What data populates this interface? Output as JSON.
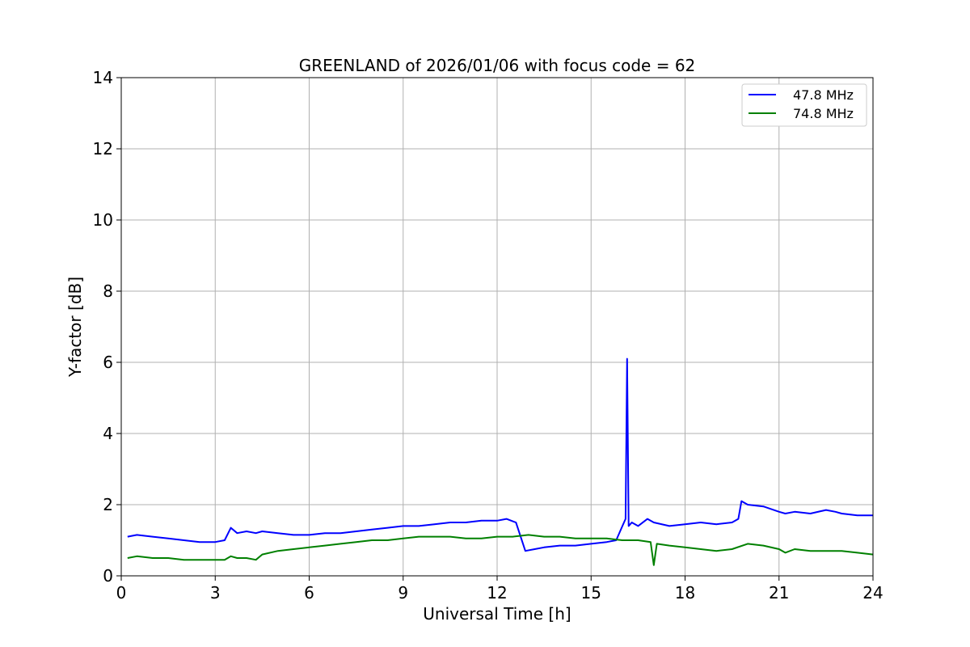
{
  "chart_data": {
    "type": "line",
    "title": "GREENLAND of 2026/01/06 with focus code = 62",
    "xlabel": "Universal Time [h]",
    "ylabel": "Y-factor [dB]",
    "xlim": [
      0,
      24
    ],
    "ylim": [
      0,
      14
    ],
    "xticks": [
      "0",
      "3",
      "6",
      "9",
      "12",
      "15",
      "18",
      "21",
      "24"
    ],
    "yticks": [
      "0",
      "2",
      "4",
      "6",
      "8",
      "10",
      "12",
      "14"
    ],
    "grid": true,
    "legend_position": "top-right",
    "series": [
      {
        "name": "47.8 MHz",
        "color": "#0000ff",
        "x": [
          0.2,
          0.5,
          1.0,
          1.5,
          2.0,
          2.5,
          3.0,
          3.3,
          3.5,
          3.7,
          4.0,
          4.3,
          4.5,
          5.0,
          5.5,
          6.0,
          6.5,
          7.0,
          7.5,
          8.0,
          8.5,
          9.0,
          9.5,
          10.0,
          10.5,
          11.0,
          11.5,
          12.0,
          12.3,
          12.6,
          12.9,
          13.2,
          13.5,
          14.0,
          14.5,
          15.0,
          15.5,
          15.8,
          16.0,
          16.1,
          16.15,
          16.2,
          16.3,
          16.5,
          16.8,
          17.0,
          17.5,
          18.0,
          18.5,
          19.0,
          19.5,
          19.7,
          19.8,
          20.0,
          20.5,
          21.0,
          21.2,
          21.5,
          22.0,
          22.5,
          22.8,
          23.0,
          23.5,
          24.0
        ],
        "y": [
          1.1,
          1.15,
          1.1,
          1.05,
          1.0,
          0.95,
          0.95,
          1.0,
          1.35,
          1.2,
          1.25,
          1.2,
          1.25,
          1.2,
          1.15,
          1.15,
          1.2,
          1.2,
          1.25,
          1.3,
          1.35,
          1.4,
          1.4,
          1.45,
          1.5,
          1.5,
          1.55,
          1.55,
          1.6,
          1.5,
          0.7,
          0.75,
          0.8,
          0.85,
          0.85,
          0.9,
          0.95,
          1.0,
          1.4,
          1.6,
          6.1,
          1.4,
          1.5,
          1.4,
          1.6,
          1.5,
          1.4,
          1.45,
          1.5,
          1.45,
          1.5,
          1.6,
          2.1,
          2.0,
          1.95,
          1.8,
          1.75,
          1.8,
          1.75,
          1.85,
          1.8,
          1.75,
          1.7,
          1.7
        ]
      },
      {
        "name": "74.8 MHz",
        "color": "#008000",
        "x": [
          0.2,
          0.5,
          1.0,
          1.5,
          2.0,
          2.5,
          3.0,
          3.3,
          3.5,
          3.7,
          4.0,
          4.3,
          4.5,
          5.0,
          5.5,
          6.0,
          6.5,
          7.0,
          7.5,
          8.0,
          8.5,
          9.0,
          9.5,
          10.0,
          10.5,
          11.0,
          11.5,
          12.0,
          12.5,
          13.0,
          13.5,
          14.0,
          14.5,
          15.0,
          15.5,
          16.0,
          16.5,
          16.9,
          17.0,
          17.1,
          17.5,
          18.0,
          18.5,
          19.0,
          19.5,
          20.0,
          20.5,
          21.0,
          21.2,
          21.5,
          22.0,
          22.5,
          23.0,
          23.5,
          24.0
        ],
        "y": [
          0.5,
          0.55,
          0.5,
          0.5,
          0.45,
          0.45,
          0.45,
          0.45,
          0.55,
          0.5,
          0.5,
          0.45,
          0.6,
          0.7,
          0.75,
          0.8,
          0.85,
          0.9,
          0.95,
          1.0,
          1.0,
          1.05,
          1.1,
          1.1,
          1.1,
          1.05,
          1.05,
          1.1,
          1.1,
          1.15,
          1.1,
          1.1,
          1.05,
          1.05,
          1.05,
          1.0,
          1.0,
          0.95,
          0.3,
          0.9,
          0.85,
          0.8,
          0.75,
          0.7,
          0.75,
          0.9,
          0.85,
          0.75,
          0.65,
          0.75,
          0.7,
          0.7,
          0.7,
          0.65,
          0.6
        ]
      }
    ]
  }
}
